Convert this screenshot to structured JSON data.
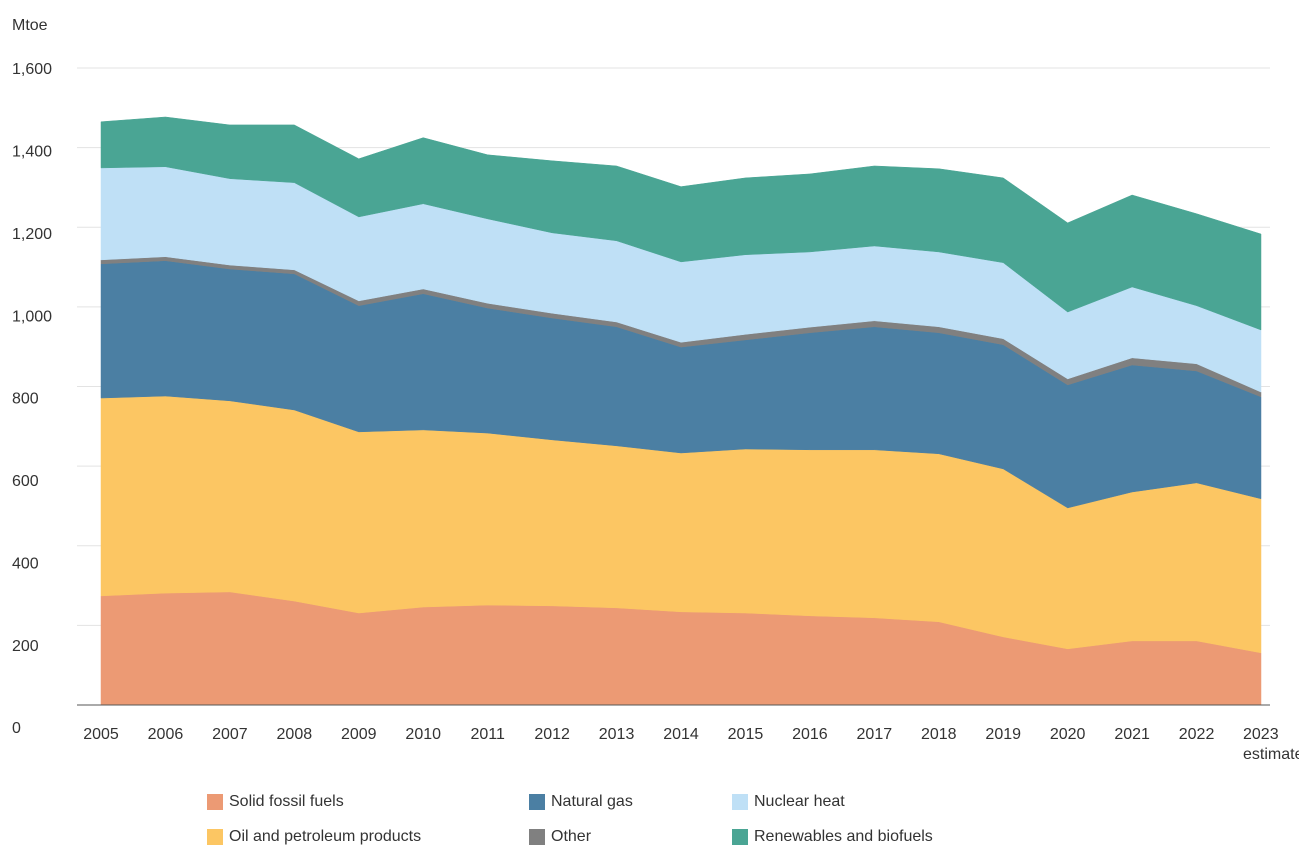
{
  "chart_data": {
    "type": "stacked_area",
    "y_label": "Mtoe",
    "categories": [
      "2005",
      "2006",
      "2007",
      "2008",
      "2009",
      "2010",
      "2011",
      "2012",
      "2013",
      "2014",
      "2015",
      "2016",
      "2017",
      "2018",
      "2019",
      "2020",
      "2021",
      "2022",
      "2023 estimate"
    ],
    "series": [
      {
        "name": "Solid fossil fuels",
        "color": "#ec9a74",
        "values": [
          274,
          281,
          284,
          261,
          231,
          246,
          251,
          249,
          244,
          234,
          231,
          224,
          219,
          209,
          171,
          141,
          161,
          161,
          131
        ]
      },
      {
        "name": "Oil and petroleum products",
        "color": "#fcc663",
        "values": [
          497,
          495,
          480,
          480,
          455,
          445,
          432,
          417,
          407,
          399,
          412,
          417,
          422,
          422,
          422,
          354,
          374,
          397,
          387
        ]
      },
      {
        "name": "Natural gas",
        "color": "#4b7fa3",
        "values": [
          337,
          340,
          331,
          342,
          317,
          342,
          314,
          306,
          299,
          266,
          274,
          294,
          309,
          304,
          312,
          309,
          319,
          281,
          256
        ]
      },
      {
        "name": "Other",
        "color": "#808080",
        "values": [
          10,
          10,
          10,
          10,
          12,
          12,
          12,
          12,
          12,
          12,
          14,
          14,
          15,
          15,
          15,
          15,
          18,
          18,
          12
        ]
      },
      {
        "name": "Nuclear heat",
        "color": "#bfe0f6",
        "values": [
          231,
          226,
          217,
          219,
          211,
          214,
          212,
          202,
          204,
          202,
          200,
          189,
          188,
          188,
          191,
          168,
          178,
          146,
          156
        ]
      },
      {
        "name": "Renewables and biofuels",
        "color": "#4aa594",
        "values": [
          116,
          125,
          135,
          145,
          146,
          166,
          161,
          181,
          188,
          189,
          193,
          196,
          201,
          209,
          213,
          224,
          231,
          231,
          241
        ]
      }
    ],
    "ylim": [
      0,
      1600
    ],
    "yticks": [
      0,
      200,
      400,
      600,
      800,
      {
        "value": 1000,
        "label": "1,000"
      },
      {
        "value": 1200,
        "label": "1,200"
      },
      {
        "value": 1400,
        "label": "1,400"
      },
      {
        "value": 1600,
        "label": "1,600"
      }
    ],
    "grid": true
  }
}
